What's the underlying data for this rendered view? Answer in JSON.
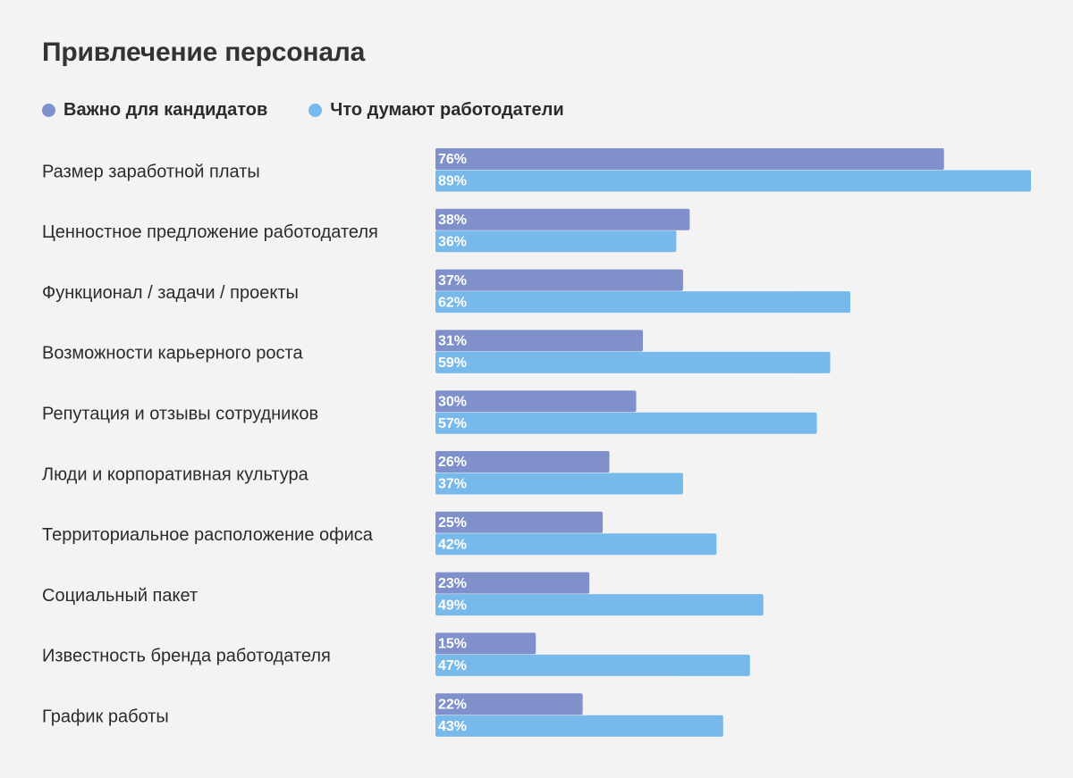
{
  "title": "Привлечение персонала",
  "colors": {
    "background": "#f3f3f3",
    "series_candidates": "#8090cb",
    "series_employers": "#76b9ea"
  },
  "chart_data": {
    "type": "bar",
    "orientation": "horizontal",
    "title": "Привлечение персонала",
    "legend_position": "top-left",
    "grid": false,
    "xlim": [
      0,
      89
    ],
    "categories": [
      "Размер заработной платы",
      "Ценностное предложение работодателя",
      "Функционал / задачи / проекты",
      "Возможности карьерного роста",
      "Репутация и отзывы сотрудников",
      "Люди и корпоративная культура",
      "Территориальное расположение офиса",
      "Социальный пакет",
      "Известность бренда работодателя",
      "График работы"
    ],
    "series": [
      {
        "name": "Важно для кандидатов",
        "color": "#8090cb",
        "values": [
          76,
          38,
          37,
          31,
          30,
          26,
          25,
          23,
          15,
          22
        ]
      },
      {
        "name": "Что думают работодатели",
        "color": "#76b9ea",
        "values": [
          89,
          36,
          62,
          59,
          57,
          37,
          42,
          49,
          47,
          43
        ]
      }
    ],
    "value_suffix": "%"
  }
}
